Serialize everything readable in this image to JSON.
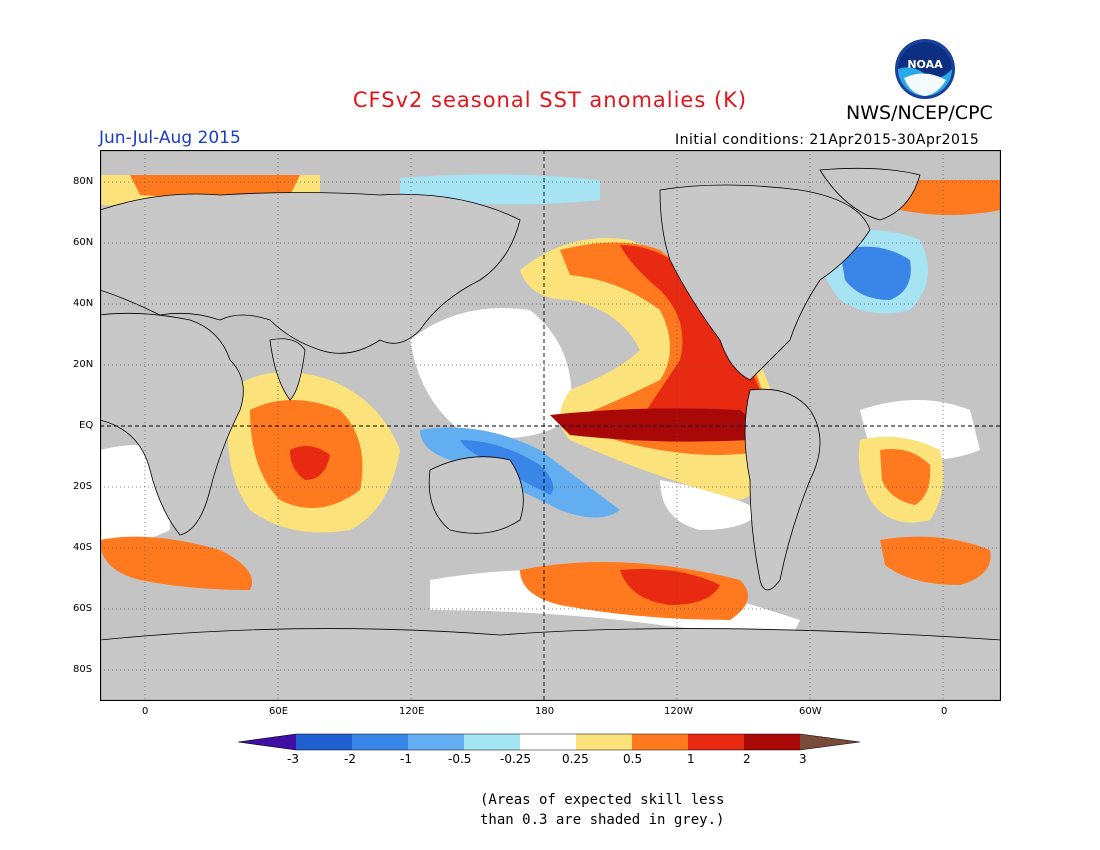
{
  "title": "CFSv2 seasonal SST anomalies (K)",
  "org": "NWS/NCEP/CPC",
  "logo_text": "NOAA",
  "season": "Jun-Jul-Aug 2015",
  "initial_conditions": "Initial conditions: 21Apr2015-30Apr2015",
  "lat_labels": [
    "80N",
    "60N",
    "40N",
    "20N",
    "EQ",
    "20S",
    "40S",
    "60S",
    "80S"
  ],
  "lon_labels": [
    "0",
    "60E",
    "120E",
    "180",
    "120W",
    "60W",
    "0"
  ],
  "colorbar": {
    "labels": [
      "-3",
      "-2",
      "-1",
      "-0.5",
      "-0.25",
      "0.25",
      "0.5",
      "1",
      "2",
      "3"
    ],
    "colors": [
      "#3f0fa5",
      "#1f5fd0",
      "#3a86e8",
      "#62aef0",
      "#a6e4f4",
      "#ffffff",
      "#fbe27a",
      "#ff7a1f",
      "#e82a12",
      "#a80808",
      "#7a4a3a"
    ]
  },
  "note_line1": "(Areas of expected skill less",
  "note_line2": "than 0.3 are shaded in grey.)",
  "colors": {
    "ocean_grey": "#c4c4c4",
    "land_grey": "#c8c8c8",
    "title_red": "#e3141a",
    "season_blue": "#1b3cc8"
  }
}
